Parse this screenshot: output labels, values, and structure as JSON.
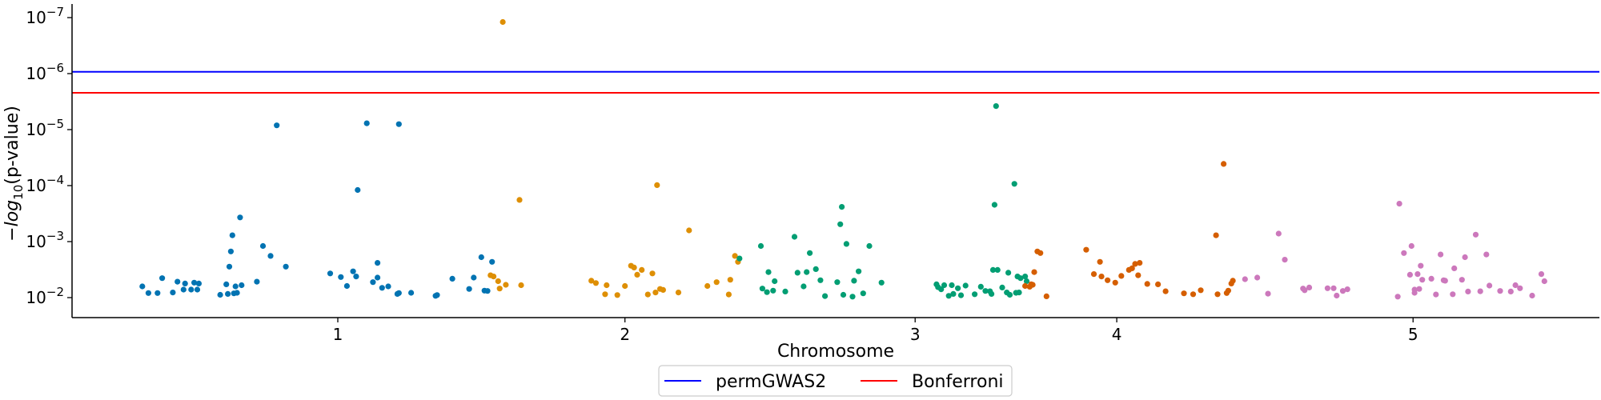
{
  "chart_data": {
    "type": "scatter",
    "title": "",
    "xlabel": "Chromosome",
    "ylabel": "−log10(p-value)",
    "y_scale": "log",
    "y_inverted": true,
    "ylim": [
      0.02,
      8e-08
    ],
    "y_ticks": [
      {
        "value": 1e-07,
        "base": "10",
        "exp": "−7"
      },
      {
        "value": 1e-06,
        "base": "10",
        "exp": "−6"
      },
      {
        "value": 1e-05,
        "base": "10",
        "exp": "−5"
      },
      {
        "value": 0.0001,
        "base": "10",
        "exp": "−4"
      },
      {
        "value": 0.001,
        "base": "10",
        "exp": "−3"
      },
      {
        "value": 0.01,
        "base": "10",
        "exp": "−2"
      }
    ],
    "x_ticks": [
      {
        "label": "1",
        "pos": 0.174
      },
      {
        "label": "2",
        "pos": 0.362
      },
      {
        "label": "3",
        "pos": 0.552
      },
      {
        "label": "4",
        "pos": 0.684
      },
      {
        "label": "5",
        "pos": 0.878
      }
    ],
    "xlim": [
      0,
      1
    ],
    "grid": false,
    "legend_position": "bottom-center",
    "thresholds": [
      {
        "name": "permGWAS2",
        "value": 9.3e-07,
        "color": "#0000ff"
      },
      {
        "name": "Bonferroni",
        "value": 2.2e-06,
        "color": "#ff0000"
      }
    ],
    "series": [
      {
        "chromosome": "1",
        "color": "#0173b2",
        "points": [
          [
            0.046,
            0.0063
          ],
          [
            0.05,
            0.0083
          ],
          [
            0.056,
            0.0083
          ],
          [
            0.059,
            0.0045
          ],
          [
            0.066,
            0.0081
          ],
          [
            0.069,
            0.0052
          ],
          [
            0.073,
            0.0072
          ],
          [
            0.074,
            0.0056
          ],
          [
            0.078,
            0.0072
          ],
          [
            0.08,
            0.0054
          ],
          [
            0.082,
            0.0072
          ],
          [
            0.083,
            0.0056
          ],
          [
            0.097,
            0.0089
          ],
          [
            0.101,
            0.0058
          ],
          [
            0.102,
            0.0086
          ],
          [
            0.103,
            0.0028
          ],
          [
            0.104,
            0.0015
          ],
          [
            0.105,
            0.00077
          ],
          [
            0.106,
            0.0084
          ],
          [
            0.107,
            0.0063
          ],
          [
            0.108,
            0.0082
          ],
          [
            0.11,
            0.00037
          ],
          [
            0.111,
            0.006
          ],
          [
            0.121,
            0.0052
          ],
          [
            0.125,
            0.0012
          ],
          [
            0.13,
            0.0018
          ],
          [
            0.134,
            8.4e-06
          ],
          [
            0.14,
            0.0028
          ],
          [
            0.169,
            0.0037
          ],
          [
            0.176,
            0.0043
          ],
          [
            0.18,
            0.0062
          ],
          [
            0.184,
            0.0034
          ],
          [
            0.186,
            0.0042
          ],
          [
            0.187,
            0.00012
          ],
          [
            0.193,
            7.7e-06
          ],
          [
            0.197,
            0.0053
          ],
          [
            0.2,
            0.0024
          ],
          [
            0.2,
            0.0044
          ],
          [
            0.203,
            0.0067
          ],
          [
            0.207,
            0.0063
          ],
          [
            0.213,
            0.0086
          ],
          [
            0.214,
            0.0083
          ],
          [
            0.214,
            8e-06
          ],
          [
            0.222,
            0.0082
          ],
          [
            0.238,
            0.0093
          ],
          [
            0.239,
            0.009
          ],
          [
            0.249,
            0.0046
          ],
          [
            0.26,
            0.007
          ],
          [
            0.263,
            0.0044
          ],
          [
            0.268,
            0.0019
          ],
          [
            0.27,
            0.0075
          ],
          [
            0.272,
            0.0076
          ],
          [
            0.275,
            0.0023
          ]
        ]
      },
      {
        "chromosome": "2",
        "color": "#de8f05",
        "points": [
          [
            0.274,
            0.004
          ],
          [
            0.276,
            0.0042
          ],
          [
            0.279,
            0.0051
          ],
          [
            0.28,
            0.0069
          ],
          [
            0.282,
            1.2e-07
          ],
          [
            0.284,
            0.0059
          ],
          [
            0.293,
            0.00018
          ],
          [
            0.294,
            0.006
          ],
          [
            0.34,
            0.005
          ],
          [
            0.343,
            0.0055
          ],
          [
            0.349,
            0.0087
          ],
          [
            0.35,
            0.006
          ],
          [
            0.357,
            0.009
          ],
          [
            0.362,
            0.0062
          ],
          [
            0.366,
            0.0027
          ],
          [
            0.368,
            0.0029
          ],
          [
            0.37,
            0.0039
          ],
          [
            0.373,
            0.0032
          ],
          [
            0.377,
            0.0088
          ],
          [
            0.38,
            0.0037
          ],
          [
            0.382,
            0.0081
          ],
          [
            0.383,
            9.8e-05
          ],
          [
            0.385,
            0.007
          ],
          [
            0.387,
            0.0073
          ],
          [
            0.397,
            0.0081
          ],
          [
            0.404,
            0.00063
          ],
          [
            0.416,
            0.0062
          ],
          [
            0.422,
            0.0053
          ],
          [
            0.43,
            0.0088
          ],
          [
            0.431,
            0.0048
          ],
          [
            0.434,
            0.0018
          ],
          [
            0.436,
            0.0023
          ]
        ]
      },
      {
        "chromosome": "3",
        "color": "#029e73",
        "points": [
          [
            0.437,
            0.002
          ],
          [
            0.451,
            0.0012
          ],
          [
            0.452,
            0.0069
          ],
          [
            0.455,
            0.008
          ],
          [
            0.456,
            0.0035
          ],
          [
            0.459,
            0.0075
          ],
          [
            0.46,
            0.0051
          ],
          [
            0.467,
            0.0078
          ],
          [
            0.473,
            0.00082
          ],
          [
            0.475,
            0.0036
          ],
          [
            0.479,
            0.0063
          ],
          [
            0.481,
            0.0035
          ],
          [
            0.483,
            0.0016
          ],
          [
            0.487,
            0.0031
          ],
          [
            0.49,
            0.0049
          ],
          [
            0.493,
            0.0094
          ],
          [
            0.501,
            0.0053
          ],
          [
            0.503,
            0.00049
          ],
          [
            0.504,
            0.00024
          ],
          [
            0.505,
            0.0089
          ],
          [
            0.507,
            0.0011
          ],
          [
            0.511,
            0.0096
          ],
          [
            0.512,
            0.005
          ],
          [
            0.515,
            0.0034
          ],
          [
            0.518,
            0.0084
          ],
          [
            0.522,
            0.0012
          ],
          [
            0.53,
            0.0054
          ],
          [
            0.566,
            0.0058
          ],
          [
            0.567,
            0.0065
          ],
          [
            0.569,
            0.0071
          ],
          [
            0.571,
            0.006
          ],
          [
            0.574,
            0.0093
          ],
          [
            0.576,
            0.006
          ],
          [
            0.577,
            0.0086
          ],
          [
            0.58,
            0.0068
          ],
          [
            0.582,
            0.0091
          ],
          [
            0.585,
            0.0061
          ],
          [
            0.591,
            0.0087
          ],
          [
            0.595,
            0.0064
          ],
          [
            0.598,
            0.0076
          ],
          [
            0.601,
            0.0077
          ],
          [
            0.602,
            0.0086
          ],
          [
            0.603,
            0.0032
          ],
          [
            0.604,
            0.00022
          ],
          [
            0.605,
            3.8e-06
          ],
          [
            0.606,
            0.0032
          ],
          [
            0.609,
            0.0066
          ],
          [
            0.612,
            0.0081
          ],
          [
            0.613,
            0.0036
          ],
          [
            0.614,
            0.0089
          ],
          [
            0.617,
            9.3e-05
          ],
          [
            0.618,
            0.0082
          ],
          [
            0.619,
            0.0042
          ],
          [
            0.62,
            0.0081
          ],
          [
            0.621,
            0.0045
          ],
          [
            0.624,
            0.0042
          ],
          [
            0.625,
            0.0051
          ]
        ]
      },
      {
        "chromosome": "4",
        "color": "#d55e00",
        "points": [
          [
            0.624,
            0.0062
          ],
          [
            0.627,
            0.0064
          ],
          [
            0.628,
            0.0058
          ],
          [
            0.629,
            0.0059
          ],
          [
            0.63,
            0.0035
          ],
          [
            0.632,
            0.0015
          ],
          [
            0.634,
            0.0016
          ],
          [
            0.638,
            0.0095
          ],
          [
            0.664,
            0.0014
          ],
          [
            0.669,
            0.0038
          ],
          [
            0.673,
            0.0023
          ],
          [
            0.674,
            0.0042
          ],
          [
            0.678,
            0.0049
          ],
          [
            0.683,
            0.0054
          ],
          [
            0.687,
            0.0041
          ],
          [
            0.692,
            0.0032
          ],
          [
            0.694,
            0.003
          ],
          [
            0.696,
            0.0025
          ],
          [
            0.698,
            0.004
          ],
          [
            0.699,
            0.0024
          ],
          [
            0.704,
            0.0057
          ],
          [
            0.711,
            0.0058
          ],
          [
            0.716,
            0.0077
          ],
          [
            0.728,
            0.0084
          ],
          [
            0.734,
            0.0087
          ],
          [
            0.739,
            0.0074
          ],
          [
            0.749,
            0.00077
          ],
          [
            0.75,
            0.0087
          ],
          [
            0.754,
            4.1e-05
          ],
          [
            0.756,
            0.0083
          ],
          [
            0.757,
            0.0075
          ],
          [
            0.759,
            0.0056
          ],
          [
            0.76,
            0.005
          ]
        ]
      },
      {
        "chromosome": "5",
        "color": "#cc78bc",
        "points": [
          [
            0.768,
            0.0047
          ],
          [
            0.776,
            0.0044
          ],
          [
            0.783,
            0.0085
          ],
          [
            0.79,
            0.00072
          ],
          [
            0.794,
            0.0021
          ],
          [
            0.806,
            0.0069
          ],
          [
            0.807,
            0.0074
          ],
          [
            0.81,
            0.0066
          ],
          [
            0.822,
            0.0068
          ],
          [
            0.826,
            0.0068
          ],
          [
            0.828,
            0.0092
          ],
          [
            0.832,
            0.0076
          ],
          [
            0.835,
            0.0071
          ],
          [
            0.868,
            0.0096
          ],
          [
            0.869,
            0.00021
          ],
          [
            0.872,
            0.0016
          ],
          [
            0.876,
            0.0039
          ],
          [
            0.877,
            0.0012
          ],
          [
            0.879,
            0.0072
          ],
          [
            0.879,
            0.0082
          ],
          [
            0.881,
            0.0038
          ],
          [
            0.882,
            0.007
          ],
          [
            0.883,
            0.0027
          ],
          [
            0.884,
            0.0048
          ],
          [
            0.89,
            0.0046
          ],
          [
            0.893,
            0.0088
          ],
          [
            0.896,
            0.0017
          ],
          [
            0.898,
            0.0049
          ],
          [
            0.899,
            0.005
          ],
          [
            0.904,
            0.0087
          ],
          [
            0.905,
            0.003
          ],
          [
            0.91,
            0.0048
          ],
          [
            0.912,
            0.0019
          ],
          [
            0.914,
            0.0078
          ],
          [
            0.919,
            0.00075
          ],
          [
            0.922,
            0.0077
          ],
          [
            0.926,
            0.0017
          ],
          [
            0.928,
            0.0061
          ],
          [
            0.935,
            0.0076
          ],
          [
            0.942,
            0.0078
          ],
          [
            0.945,
            0.006
          ],
          [
            0.948,
            0.0068
          ],
          [
            0.956,
            0.0092
          ],
          [
            0.962,
            0.0038
          ],
          [
            0.964,
            0.0051
          ]
        ]
      }
    ]
  }
}
